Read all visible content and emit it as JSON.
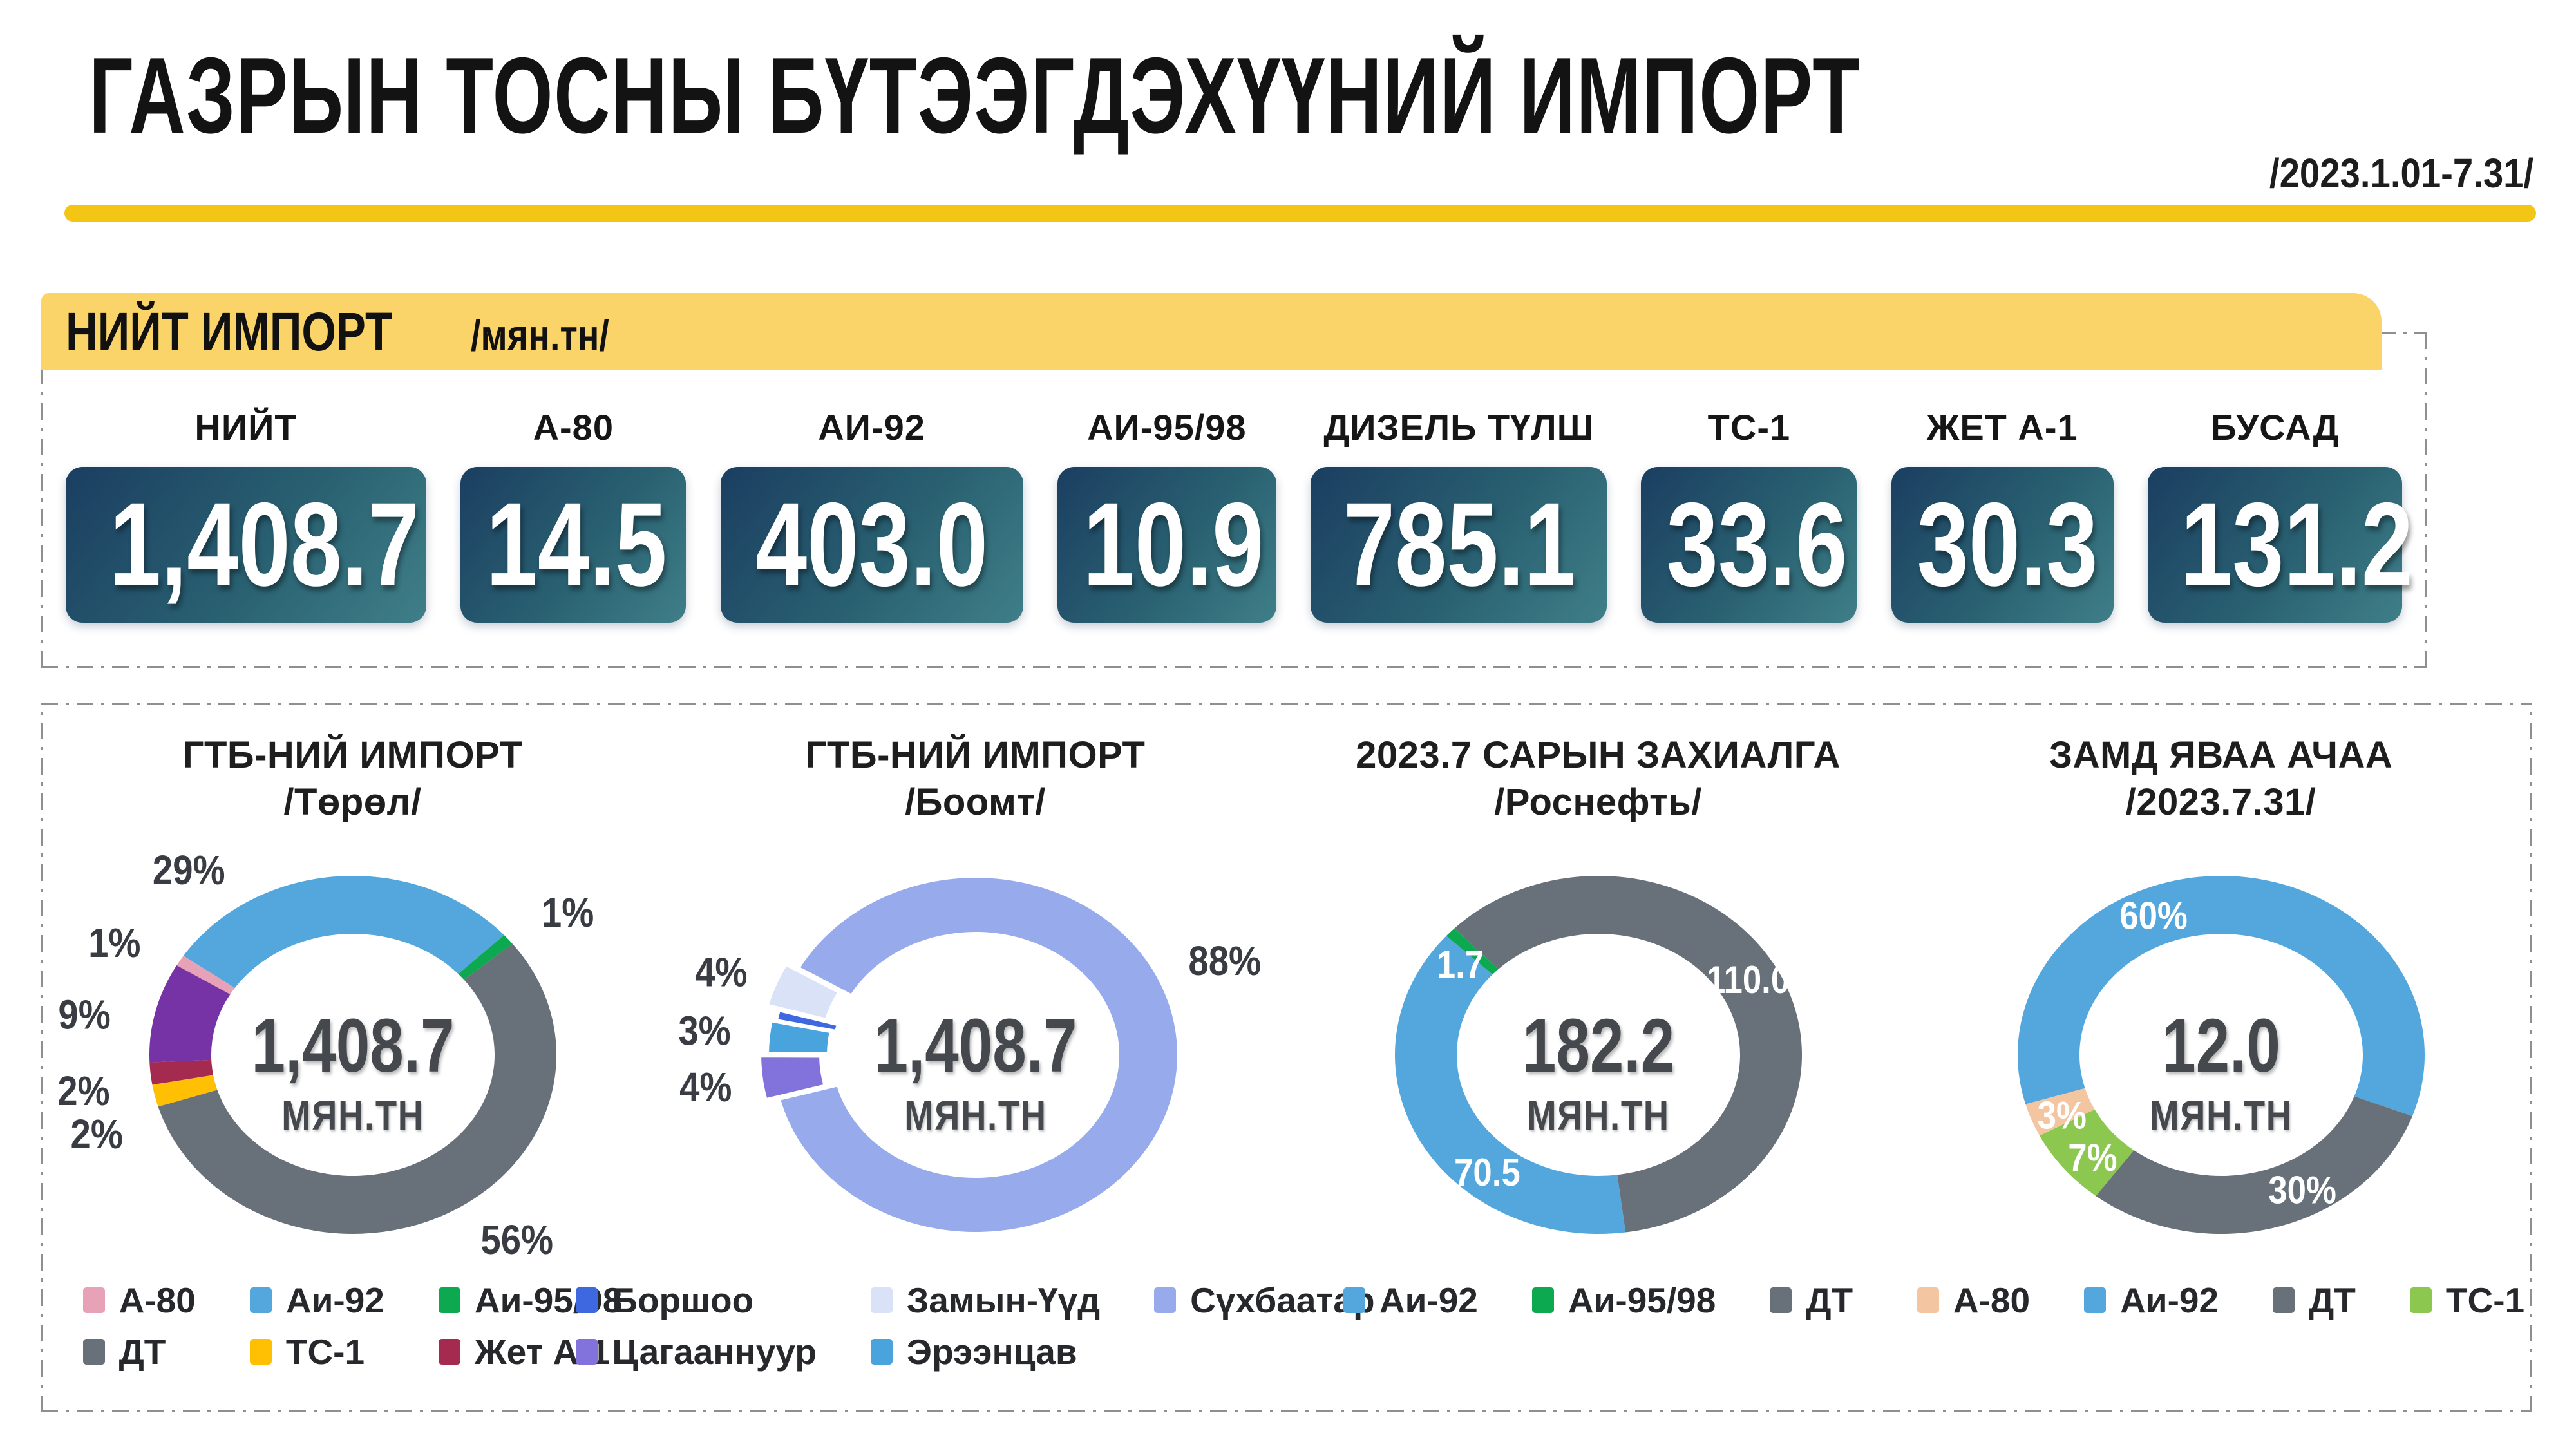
{
  "page": {
    "title": "ГАЗРЫН ТОСНЫ БҮТЭЭГДЭХҮҮНИЙ ИМПОРТ",
    "date_range": "/2023.1.01-7.31/",
    "accent_yellow": "#F3C515",
    "band_color": "#FAD469"
  },
  "summary": {
    "band_title": "НИЙТ ИМПОРТ",
    "band_unit": "/мян.тн/",
    "cards": [
      {
        "label": "НИЙТ",
        "value": "1,408.7"
      },
      {
        "label": "А-80",
        "value": "14.5"
      },
      {
        "label": "АИ-92",
        "value": "403.0"
      },
      {
        "label": "АИ-95/98",
        "value": "10.9"
      },
      {
        "label": "ДИЗЕЛЬ ТҮЛШ",
        "value": "785.1"
      },
      {
        "label": "ТС-1",
        "value": "33.6"
      },
      {
        "label": "ЖЕТ А-1",
        "value": "30.3"
      },
      {
        "label": "БУСАД",
        "value": "131.2"
      }
    ]
  },
  "chart_data": [
    {
      "type": "donut",
      "title": "ГТБ-НИЙ ИМПОРТ",
      "subtitle": "/Төрөл/",
      "center_value": "1,408.7",
      "center_unit": "МЯН.ТН",
      "start_angle": 300,
      "slice_gap": 0,
      "legend_columns": 3,
      "legend_order": [
        "А-80",
        "Аи-92",
        "Аи-95/98",
        "ДТ",
        "ТС-1",
        "Жет А-1"
      ],
      "slices": [
        {
          "label": "А-80",
          "value": 1,
          "color": "#E8A2B8",
          "label_text": "1%",
          "label_pos": "outside",
          "label_angle": 299
        },
        {
          "label": "Аи-92",
          "value": 29,
          "color": "#54A7DC",
          "label_text": "29%",
          "label_pos": "outside",
          "label_angle": 323
        },
        {
          "label": "Аи-95/98",
          "value": 1,
          "color": "#0DA950",
          "label_text": "1%",
          "label_pos": "outside",
          "label_angle": 52
        },
        {
          "label": "ДТ",
          "value": 56,
          "color": "#687079",
          "label_text": "56%",
          "label_pos": "outside",
          "label_angle": 143
        },
        {
          "label": "ТС-1",
          "value": 2,
          "color": "#FFC003",
          "label_text": "2%",
          "label_pos": "outside",
          "label_angle": 250
        },
        {
          "label": "Жет А-1",
          "value": 2,
          "color": "#A52A50",
          "label_text": "2%",
          "label_pos": "outside",
          "label_angle": 261
        },
        {
          "label": "БУСАД",
          "value": 9,
          "color": "#7533A6",
          "label_text": "9%",
          "label_pos": "outside",
          "label_angle": 280
        }
      ]
    },
    {
      "type": "donut",
      "title": "ГТБ-НИЙ ИМПОРТ",
      "subtitle": "/Боомт/",
      "center_value": "1,408.7",
      "center_unit": "МЯН.ТН",
      "start_angle": 299,
      "slice_gap": 6,
      "legend_columns": 3,
      "legend_order": [
        "Боршоо",
        "Замын-Үүд",
        "Сүхбаатар",
        "Цагааннуур",
        "Эрээнцав"
      ],
      "slices": [
        {
          "label": "Сүхбаатар",
          "value": 88,
          "color": "#96AAEC",
          "label_text": "88%",
          "label_pos": "outside",
          "label_angle": 66
        },
        {
          "label": "Цагааннуур",
          "value": 4,
          "color": "#8272DC",
          "label_text": "4%",
          "label_pos": "outside",
          "label_angle": 262,
          "explode": 20
        },
        {
          "label": "Эрээнцав",
          "value": 3,
          "color": "#49A4DE",
          "label_text": "3%",
          "label_pos": "outside",
          "label_angle": 276,
          "explode": 8
        },
        {
          "label": "Боршоо",
          "value": 1,
          "color": "#3D68E0",
          "label_text": "",
          "label_pos": "outside",
          "label_angle": 283
        },
        {
          "label": "Замын-Үүд",
          "value": 4,
          "color": "#DAE2F8",
          "label_text": "4%",
          "label_pos": "outside",
          "label_angle": 291,
          "explode": 20
        }
      ]
    },
    {
      "type": "donut",
      "title": "2023.7 САРЫН ЗАХИАЛГА",
      "subtitle": "/Роснефть/",
      "center_value": "182.2",
      "center_unit": "МЯН.ТН",
      "start_angle": 315,
      "slice_gap": 0,
      "legend_columns": 3,
      "legend_order": [
        "Аи-92",
        "Аи-95/98",
        "ДТ"
      ],
      "slices": [
        {
          "label": "ДТ",
          "value": 110.0,
          "color": "#687079",
          "label_text": "110.0",
          "label_pos": "inside",
          "label_angle": 60
        },
        {
          "label": "Аи-92",
          "value": 70.5,
          "color": "#54A7DC",
          "label_text": "70.5",
          "label_pos": "inside",
          "label_angle": 220
        },
        {
          "label": "Аи-95/98",
          "value": 1.7,
          "color": "#0DA950",
          "label_text": "1.7",
          "label_pos": "inside",
          "label_angle": 307
        }
      ]
    },
    {
      "type": "donut",
      "title": "ЗАМД ЯВАА АЧАА",
      "subtitle": "/2023.7.31/",
      "center_value": "12.0",
      "center_unit": "МЯН.ТН",
      "start_angle": 254,
      "slice_gap": 0,
      "legend_columns": 4,
      "legend_order": [
        "А-80",
        "Аи-92",
        "ДТ",
        "ТС-1"
      ],
      "slices": [
        {
          "label": "Аи-92",
          "value": 60,
          "color": "#54A7DC",
          "label_text": "60%",
          "label_pos": "inside",
          "label_angle": 337
        },
        {
          "label": "ДТ",
          "value": 30,
          "color": "#687079",
          "label_text": "30%",
          "label_pos": "inside",
          "label_angle": 152
        },
        {
          "label": "ТС-1",
          "value": 7,
          "color": "#8CC850",
          "label_text": "7%",
          "label_pos": "inside",
          "label_angle": 228
        },
        {
          "label": "А-80",
          "value": 3,
          "color": "#F4C5A1",
          "label_text": "3%",
          "label_pos": "inside",
          "label_angle": 247
        }
      ]
    }
  ]
}
